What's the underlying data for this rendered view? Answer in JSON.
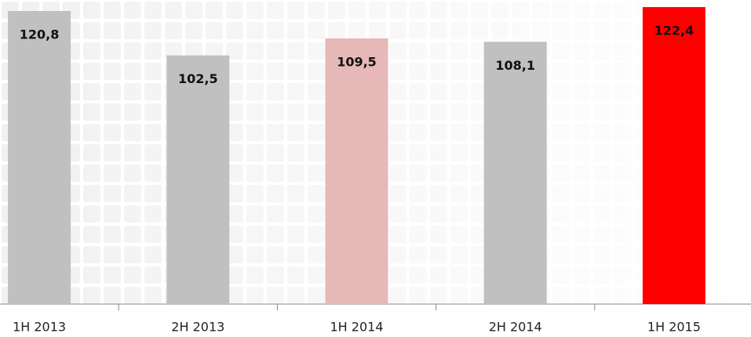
{
  "chart_data": {
    "type": "bar",
    "categories": [
      "1H 2013",
      "2H 2013",
      "1H 2014",
      "2H 2014",
      "1H 2015"
    ],
    "values": [
      120.8,
      102.5,
      109.5,
      108.1,
      122.4
    ],
    "value_labels": [
      "120,8",
      "102,5",
      "109,5",
      "108,1",
      "122,4"
    ],
    "colors": [
      "#c0c0c0",
      "#c0c0c0",
      "#e6b8b7",
      "#c0c0c0",
      "#ff0000"
    ],
    "ylim": [
      0,
      125
    ]
  }
}
